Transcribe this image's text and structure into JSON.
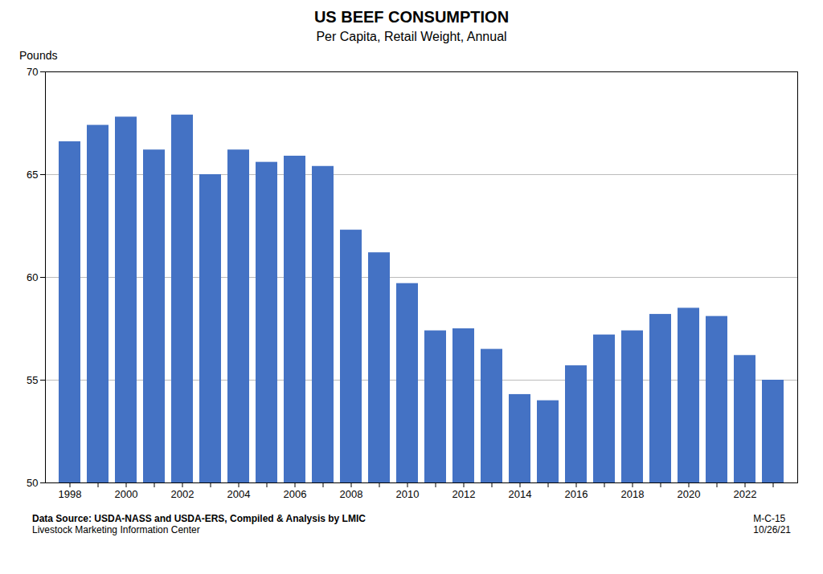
{
  "chart_data": {
    "type": "bar",
    "title": "US BEEF CONSUMPTION",
    "subtitle": "Per Capita, Retail Weight, Annual",
    "ylabel": "Pounds",
    "annotations": [
      "Data Source:  USDA-NASS and USDA-ERS, Compiled & Analysis by LMIC",
      "Livestock Marketing Information Center",
      "M-C-15\n10/26/21"
    ],
    "categories": [
      "1998",
      null,
      "2000",
      null,
      "2002",
      null,
      "2004",
      null,
      "2006",
      null,
      "2008",
      null,
      "2010",
      null,
      "2012",
      null,
      "2014",
      null,
      "2016",
      null,
      "2018",
      null,
      "2020",
      null,
      "2022",
      null
    ],
    "values": [
      66.6,
      67.4,
      67.8,
      66.2,
      67.9,
      65.0,
      66.2,
      65.6,
      65.9,
      65.4,
      62.3,
      61.2,
      59.7,
      57.4,
      57.5,
      56.5,
      54.3,
      54.0,
      55.7,
      57.2,
      57.4,
      58.2,
      58.5,
      58.1,
      56.2,
      55.0
    ],
    "color": "#4472C4",
    "ylim": [
      50,
      70
    ],
    "yticks": [
      50,
      55,
      60,
      65,
      70
    ],
    "grid": true
  }
}
